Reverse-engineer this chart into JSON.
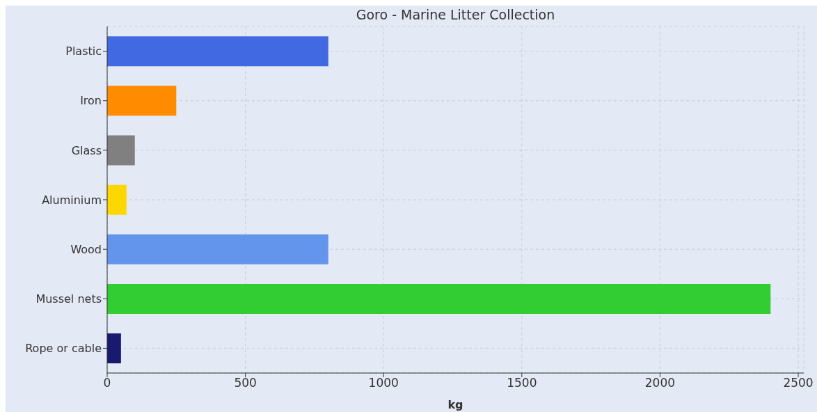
{
  "chart_data": {
    "type": "bar",
    "orientation": "horizontal",
    "title": "Goro - Marine Litter Collection",
    "xlabel": "kg",
    "categories": [
      "Plastic",
      "Iron",
      "Glass",
      "Aluminium",
      "Wood",
      "Mussel nets",
      "Rope or cable"
    ],
    "values": [
      800,
      250,
      100,
      70,
      800,
      2400,
      50
    ],
    "colors": [
      "#4169e1",
      "#ff8c00",
      "#808080",
      "#ffd700",
      "#6495ed",
      "#32cd32",
      "#191970"
    ],
    "xlim": [
      0,
      2520
    ],
    "xticks": [
      0,
      500,
      1000,
      1500,
      2000,
      2500
    ],
    "grid": true
  }
}
